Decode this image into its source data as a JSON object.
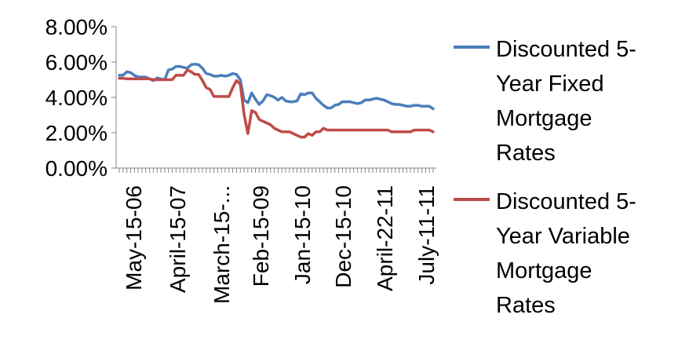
{
  "chart_data": {
    "type": "line",
    "title": "",
    "xlabel": "",
    "ylabel": "",
    "ylim": [
      0,
      0.08
    ],
    "y_ticks": [
      "0.00%",
      "2.00%",
      "4.00%",
      "6.00%",
      "8.00%"
    ],
    "x_tick_labels": [
      "May-15-06",
      "April-15-07",
      "March-15-...",
      "Feb-15-09",
      "Jan-15-10",
      "Dec-15-10",
      "April-22-11",
      "July-11-11"
    ],
    "grid": false,
    "legend_position": "right",
    "series": [
      {
        "name": "Discounted 5-Year Fixed Mortgage Rates",
        "legend_lines": [
          "Discounted 5-",
          "Year Fixed",
          "Mortgage",
          "Rates"
        ],
        "color": "#4a7ebb",
        "values": [
          0.0525,
          0.0525,
          0.0545,
          0.054,
          0.0525,
          0.0515,
          0.0515,
          0.0515,
          0.0505,
          0.0495,
          0.051,
          0.0505,
          0.05,
          0.0555,
          0.056,
          0.0575,
          0.0575,
          0.057,
          0.0565,
          0.0585,
          0.0588,
          0.0585,
          0.0565,
          0.0535,
          0.053,
          0.052,
          0.052,
          0.0525,
          0.052,
          0.0525,
          0.0535,
          0.053,
          0.05,
          0.0385,
          0.037,
          0.0425,
          0.039,
          0.036,
          0.038,
          0.0415,
          0.041,
          0.04,
          0.0385,
          0.04,
          0.038,
          0.0375,
          0.0375,
          0.038,
          0.042,
          0.0415,
          0.0425,
          0.0425,
          0.0395,
          0.0375,
          0.0355,
          0.034,
          0.034,
          0.0355,
          0.036,
          0.0375,
          0.0375,
          0.0375,
          0.037,
          0.0365,
          0.037,
          0.0385,
          0.0385,
          0.039,
          0.0395,
          0.039,
          0.0385,
          0.0375,
          0.0365,
          0.036,
          0.036,
          0.0355,
          0.035,
          0.035,
          0.0355,
          0.0355,
          0.035,
          0.035,
          0.035,
          0.0335
        ]
      },
      {
        "name": "Discounted 5-Year Variable Mortgage Rates",
        "legend_lines": [
          "Discounted 5-",
          "Year Variable",
          "Mortgage",
          "Rates"
        ],
        "color": "#be4b48",
        "values": [
          0.0508,
          0.0508,
          0.0505,
          0.0505,
          0.0505,
          0.0505,
          0.0505,
          0.0505,
          0.0505,
          0.05,
          0.05,
          0.05,
          0.05,
          0.05,
          0.05,
          0.0525,
          0.0525,
          0.0525,
          0.0555,
          0.0545,
          0.053,
          0.053,
          0.0495,
          0.0455,
          0.0445,
          0.0405,
          0.0405,
          0.0405,
          0.0405,
          0.0405,
          0.0455,
          0.0495,
          0.0475,
          0.0305,
          0.0195,
          0.0325,
          0.0315,
          0.0275,
          0.0265,
          0.0255,
          0.0245,
          0.0225,
          0.0215,
          0.0205,
          0.0205,
          0.0205,
          0.0195,
          0.0185,
          0.0175,
          0.0175,
          0.0195,
          0.0185,
          0.0205,
          0.0205,
          0.0225,
          0.0215,
          0.0215,
          0.0215,
          0.0215,
          0.0215,
          0.0215,
          0.0215,
          0.0215,
          0.0215,
          0.0215,
          0.0215,
          0.0215,
          0.0215,
          0.0215,
          0.0215,
          0.0215,
          0.0215,
          0.0205,
          0.0205,
          0.0205,
          0.0205,
          0.0205,
          0.0205,
          0.0215,
          0.0215,
          0.0215,
          0.0215,
          0.0215,
          0.0205
        ]
      }
    ]
  }
}
